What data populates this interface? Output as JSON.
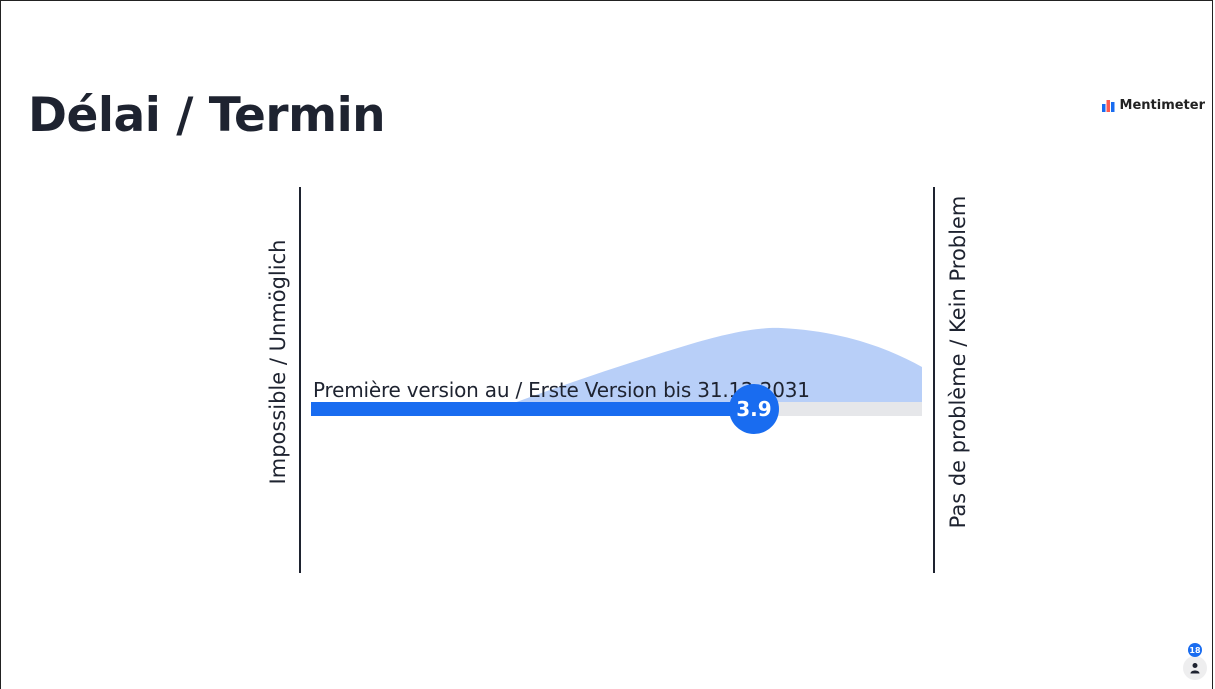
{
  "slide": {
    "title": "Délai / Termin",
    "brand": "Mentimeter"
  },
  "scale": {
    "min_label": "Impossible / Unmöglich",
    "max_label": "Pas de problème / Kein Problem",
    "min_value": 1,
    "max_value": 5
  },
  "statements": [
    {
      "text": "Première version au / Erste Version bis 31.12.2031",
      "mean": 3.9,
      "mean_label": "3.9"
    }
  ],
  "participants": {
    "count": "18"
  },
  "colors": {
    "accent": "#196cf0",
    "distribution": "#b8cff8",
    "track": "#e6e7ea",
    "text": "#1e2330"
  }
}
